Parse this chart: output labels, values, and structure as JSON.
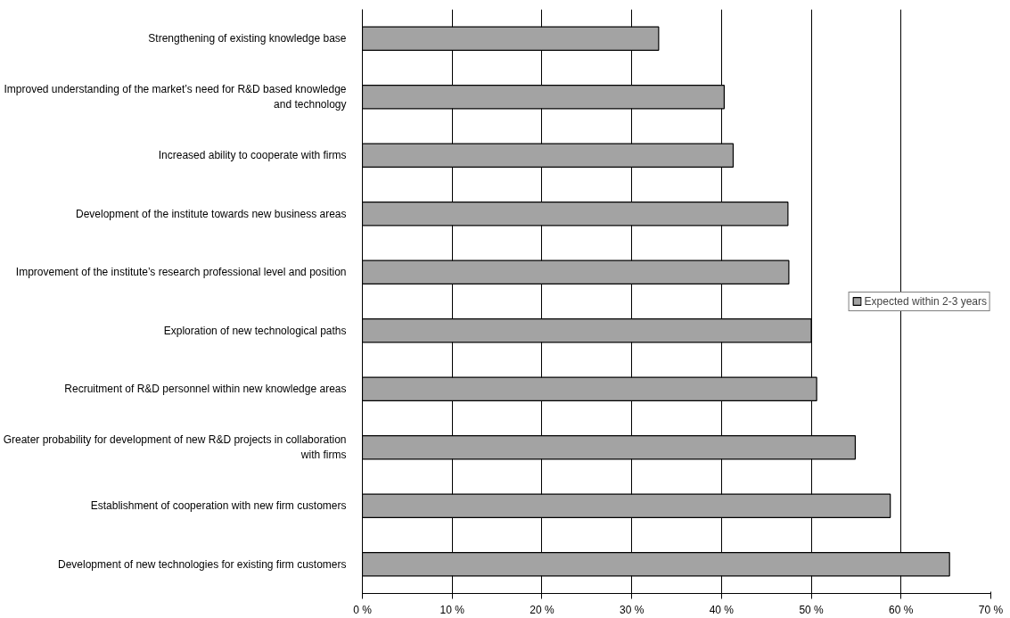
{
  "chart_data": {
    "type": "bar",
    "orientation": "horizontal",
    "categories": [
      "Strengthening of existing knowledge base",
      "Improved understanding of the market’s need for R&D based knowledge\nand technology",
      "Increased ability to cooperate with firms",
      "Development of the institute towards new business areas",
      "Improvement of the institute’s research professional level and position",
      "Exploration of new technological paths",
      "Recruitment of R&D personnel within new knowledge areas",
      "Greater probability for development of new R&D projects in collaboration\nwith firms",
      "Establishment of cooperation with new firm customers",
      "Development of new technologies for existing firm customers"
    ],
    "series": [
      {
        "name": "Expected within 2-3 years",
        "color": "#a3a3a3",
        "values": [
          33.0,
          40.3,
          41.3,
          47.4,
          47.5,
          50.0,
          50.6,
          54.9,
          58.8,
          65.4
        ]
      }
    ],
    "xlim": [
      0,
      70
    ],
    "xticks": [
      {
        "value": 0,
        "label": "0 %"
      },
      {
        "value": 10,
        "label": "10 %"
      },
      {
        "value": 20,
        "label": "20 %"
      },
      {
        "value": 30,
        "label": "30 %"
      },
      {
        "value": 40,
        "label": "40 %"
      },
      {
        "value": 50,
        "label": "50 %"
      },
      {
        "value": 60,
        "label": "60 %"
      },
      {
        "value": 70,
        "label": "70 %"
      }
    ],
    "grid": "x",
    "legend": "right"
  }
}
